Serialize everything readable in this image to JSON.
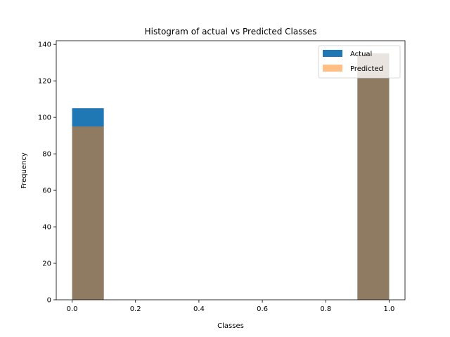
{
  "chart_data": {
    "type": "bar",
    "title": "Histogram of actual vs Predicted Classes",
    "xlabel": "Classes",
    "ylabel": "Frequency",
    "xlim": [
      -0.05,
      1.05
    ],
    "ylim": [
      0,
      142
    ],
    "xticks": [
      "0.0",
      "0.2",
      "0.4",
      "0.6",
      "0.8",
      "1.0"
    ],
    "yticks": [
      "0",
      "20",
      "40",
      "60",
      "80",
      "100",
      "120",
      "140"
    ],
    "bins": [
      {
        "x0": 0.0,
        "x1": 0.1
      },
      {
        "x0": 0.9,
        "x1": 1.0
      }
    ],
    "series": [
      {
        "name": "Actual",
        "values": [
          105,
          135
        ],
        "color": "#1f77b4",
        "opacity": 1.0
      },
      {
        "name": "Predicted",
        "values": [
          95,
          135
        ],
        "color": "#ff7f0e",
        "opacity": 0.5
      }
    ],
    "overlap_color": "#8f7b5e",
    "legend": "top-right",
    "grid": false
  }
}
